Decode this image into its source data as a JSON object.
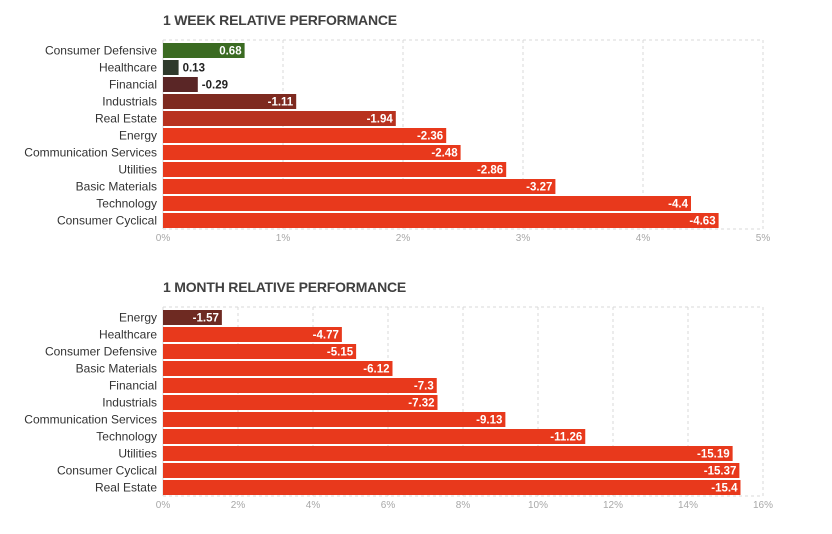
{
  "colors": {
    "positive": "#3b6b22",
    "near_zero_dark": "#2f3a2c",
    "small_negative": "#5a2626",
    "mid_negative": "#7e2a20",
    "negative": "#e8391c",
    "grid": "#d9d9d9"
  },
  "chart_data": [
    {
      "type": "bar",
      "orientation": "horizontal",
      "title": "1 WEEK RELATIVE PERFORMANCE",
      "categories": [
        "Consumer Defensive",
        "Healthcare",
        "Financial",
        "Industrials",
        "Real Estate",
        "Energy",
        "Communication Services",
        "Utilities",
        "Basic Materials",
        "Technology",
        "Consumer Cyclical"
      ],
      "values": [
        0.68,
        0.13,
        -0.29,
        -1.11,
        -1.94,
        -2.36,
        -2.48,
        -2.86,
        -3.27,
        -4.4,
        -4.63
      ],
      "value_labels": [
        "0.68",
        "0.13",
        "-0.29",
        "-1.11",
        "-1.94",
        "-2.36",
        "-2.48",
        "-2.86",
        "-3.27",
        "-4.4",
        "-4.63"
      ],
      "bar_colors": [
        "#3b6b22",
        "#2f3a2c",
        "#5a2626",
        "#7e2a20",
        "#b8321f",
        "#e8391c",
        "#e8391c",
        "#e8391c",
        "#e8391c",
        "#e8391c",
        "#e8391c"
      ],
      "xlim": [
        0,
        5
      ],
      "ticks": [
        0,
        1,
        2,
        3,
        4,
        5
      ],
      "tick_labels": [
        "0%",
        "1%",
        "2%",
        "3%",
        "4%",
        "5%"
      ],
      "grid": true
    },
    {
      "type": "bar",
      "orientation": "horizontal",
      "title": "1 MONTH RELATIVE PERFORMANCE",
      "categories": [
        "Energy",
        "Healthcare",
        "Consumer Defensive",
        "Basic Materials",
        "Financial",
        "Industrials",
        "Communication Services",
        "Technology",
        "Utilities",
        "Consumer Cyclical",
        "Real Estate"
      ],
      "values": [
        -1.57,
        -4.77,
        -5.15,
        -6.12,
        -7.3,
        -7.32,
        -9.13,
        -11.26,
        -15.19,
        -15.37,
        -15.4
      ],
      "value_labels": [
        "-1.57",
        "-4.77",
        "-5.15",
        "-6.12",
        "-7.3",
        "-7.32",
        "-9.13",
        "-11.26",
        "-15.19",
        "-15.37",
        "-15.4"
      ],
      "bar_colors": [
        "#6e2a22",
        "#e8391c",
        "#e8391c",
        "#e8391c",
        "#e8391c",
        "#e8391c",
        "#e8391c",
        "#e8391c",
        "#e8391c",
        "#e8391c",
        "#e8391c"
      ],
      "xlim": [
        0,
        16
      ],
      "ticks": [
        0,
        2,
        4,
        6,
        8,
        10,
        12,
        14,
        16
      ],
      "tick_labels": [
        "0%",
        "2%",
        "4%",
        "6%",
        "8%",
        "10%",
        "12%",
        "14%",
        "16%"
      ],
      "grid": true
    }
  ]
}
